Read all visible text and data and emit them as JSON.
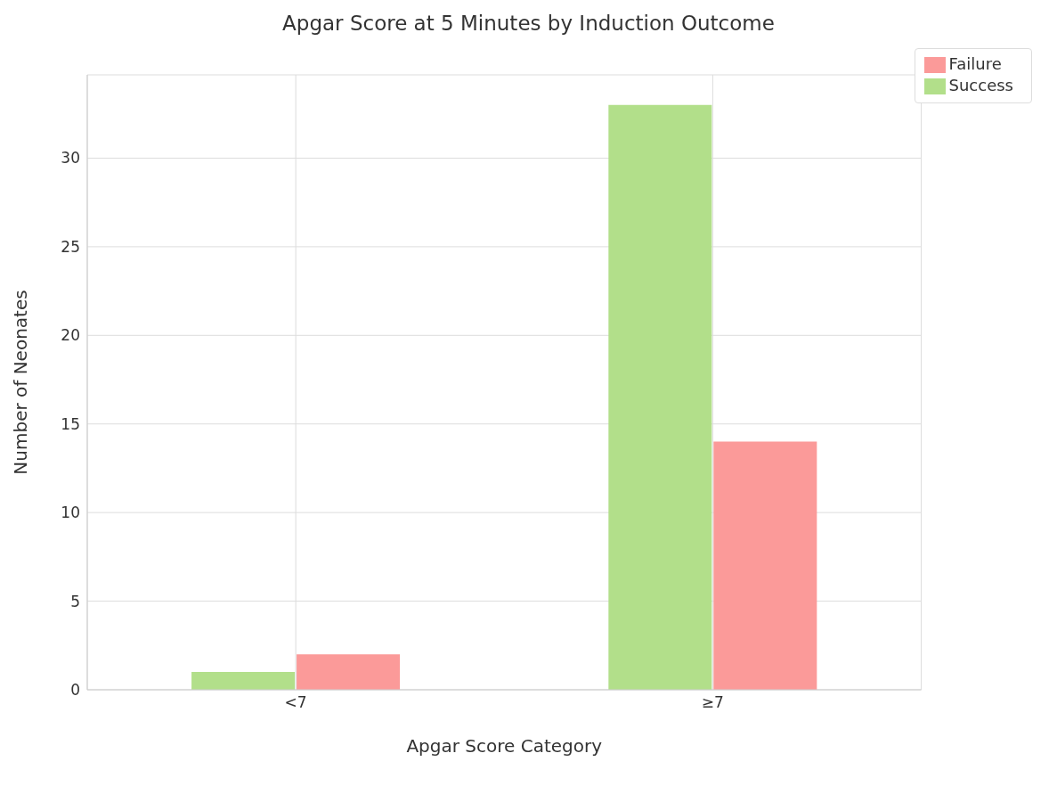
{
  "chart_data": {
    "type": "bar",
    "title": "Apgar Score at 5 Minutes by Induction Outcome",
    "xlabel": "Apgar Score Category",
    "ylabel": "Number of Neonates",
    "categories": [
      "<7",
      "≥7"
    ],
    "series": [
      {
        "name": "Success",
        "color": "#b2df8a",
        "values": [
          1,
          33
        ]
      },
      {
        "name": "Failure",
        "color": "#fb9a99",
        "values": [
          2,
          14
        ]
      }
    ],
    "ylim": [
      0,
      34.7
    ],
    "yticks": [
      0,
      5,
      10,
      15,
      20,
      25,
      30
    ],
    "grid": true,
    "legend": "top right"
  }
}
